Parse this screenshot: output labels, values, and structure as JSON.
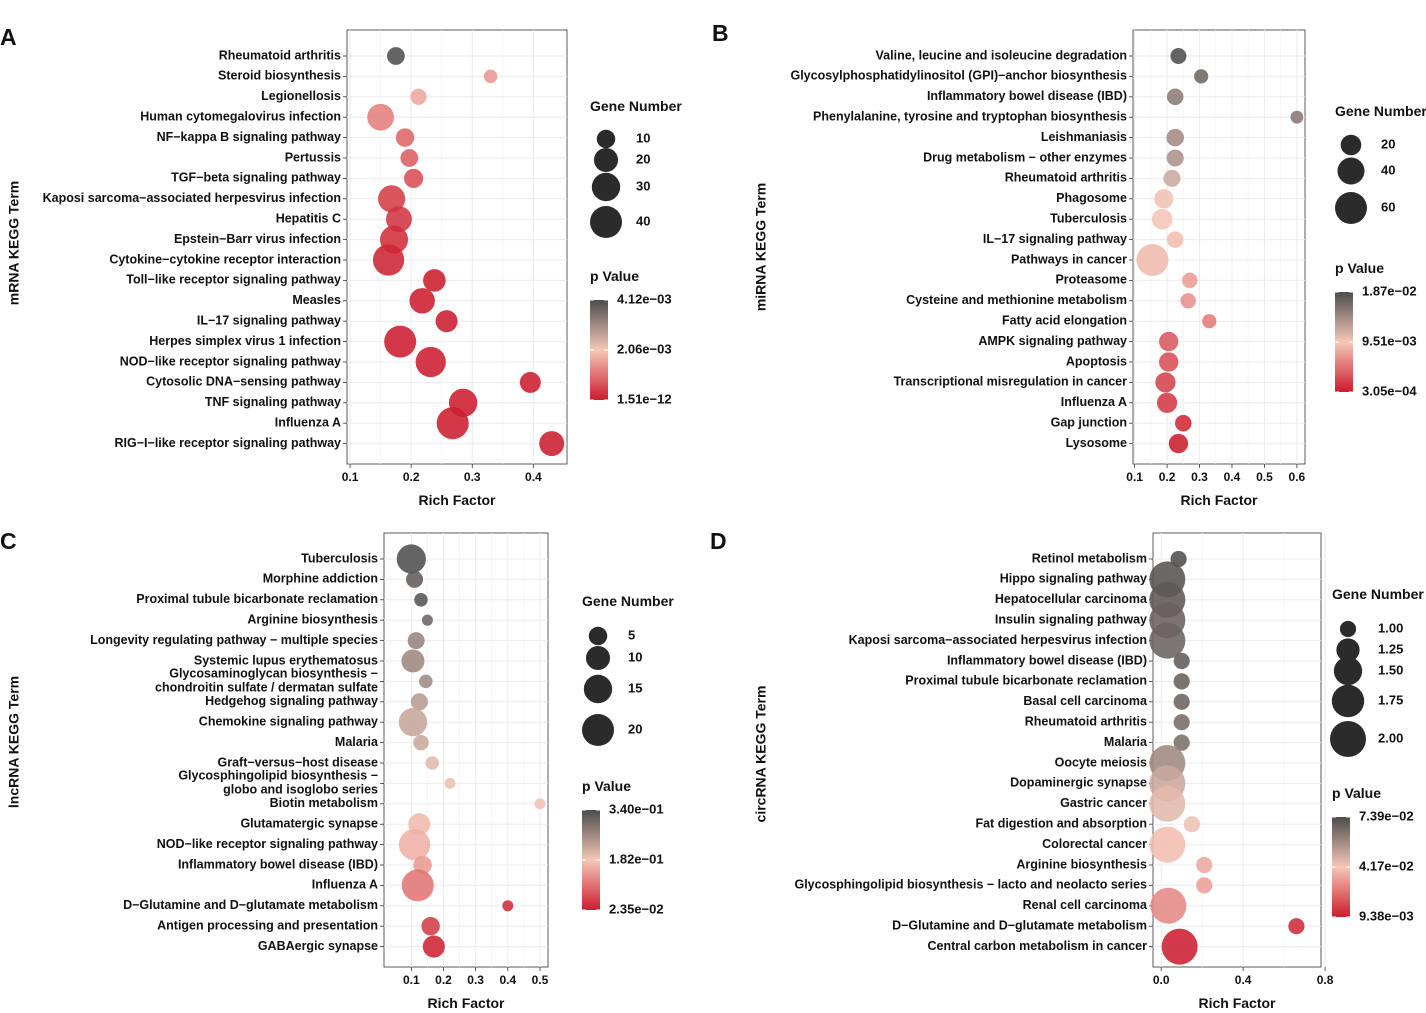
{
  "colors": {
    "low_p": "#cc1c2d",
    "mid_p": "#f4c7b7",
    "high_p": "#4d4d4d",
    "panel_bg": "#ffffff",
    "grid": "#ebebeb"
  },
  "chart_data": [
    {
      "type": "scatter",
      "panel": "A",
      "ylabel": "mRNA KEGG Term",
      "xlabel": "Rich Factor",
      "xlim": [
        0.095,
        0.455
      ],
      "xticks": [
        0.1,
        0.2,
        0.3,
        0.4
      ],
      "xtick_labels": [
        "0.1",
        "0.2",
        "0.3",
        "0.4"
      ],
      "size_legend": {
        "title": "Gene Number",
        "values": [
          10,
          20,
          30,
          40
        ],
        "labels": [
          "10",
          "20",
          "30",
          "40"
        ],
        "domain": [
          0,
          40
        ],
        "rmax": 16
      },
      "color_legend": {
        "title": "p Value",
        "labels": [
          "4.12e−03",
          "2.06e−03",
          "1.51e−12"
        ],
        "domain": [
          1.51e-12,
          0.00412
        ]
      },
      "points": [
        {
          "term": "Rheumatoid arthritis",
          "x": 0.175,
          "genes": 9,
          "p": 0.0041
        },
        {
          "term": "Steroid biosynthesis",
          "x": 0.33,
          "genes": 4,
          "p": 0.0015
        },
        {
          "term": "Legionellosis",
          "x": 0.212,
          "genes": 7,
          "p": 0.0017
        },
        {
          "term": "Human cytomegalovirus infection",
          "x": 0.15,
          "genes": 26,
          "p": 0.0012
        },
        {
          "term": "NF−kappa B signaling pathway",
          "x": 0.19,
          "genes": 10,
          "p": 0.0009
        },
        {
          "term": "Pertussis",
          "x": 0.197,
          "genes": 9,
          "p": 0.0008
        },
        {
          "term": "TGF−beta signaling pathway",
          "x": 0.204,
          "genes": 11,
          "p": 0.0006
        },
        {
          "term": "Kaposi sarcoma−associated herpesvirus infection",
          "x": 0.168,
          "genes": 27,
          "p": 0.0004
        },
        {
          "term": "Hepatitis C",
          "x": 0.18,
          "genes": 24,
          "p": 0.0003
        },
        {
          "term": "Epstein−Barr virus infection",
          "x": 0.172,
          "genes": 29,
          "p": 0.0002
        },
        {
          "term": "Cytokine−cytokine receptor interaction",
          "x": 0.163,
          "genes": 38,
          "p": 0.0001
        },
        {
          "term": "Toll−like receptor signaling pathway",
          "x": 0.238,
          "genes": 17,
          "p": 2e-05
        },
        {
          "term": "Measles",
          "x": 0.218,
          "genes": 23,
          "p": 1e-05
        },
        {
          "term": "IL−17 signaling pathway",
          "x": 0.258,
          "genes": 16,
          "p": 1e-05
        },
        {
          "term": "Herpes simplex virus 1 infection",
          "x": 0.182,
          "genes": 66,
          "p": 1e-06
        },
        {
          "term": "NOD−like receptor signaling pathway",
          "x": 0.232,
          "genes": 35,
          "p": 1e-06
        },
        {
          "term": "Cytosolic DNA−sensing pathway",
          "x": 0.395,
          "genes": 14,
          "p": 1e-07
        },
        {
          "term": "TNF signaling pathway",
          "x": 0.285,
          "genes": 30,
          "p": 1e-08
        },
        {
          "term": "Influenza A",
          "x": 0.268,
          "genes": 44,
          "p": 1e-09
        },
        {
          "term": "RIG−I−like receptor signaling pathway",
          "x": 0.43,
          "genes": 22,
          "p": 1.51e-12
        }
      ]
    },
    {
      "type": "scatter",
      "panel": "B",
      "ylabel": "miRNA KEGG Term",
      "xlabel": "Rich Factor",
      "xlim": [
        0.095,
        0.625
      ],
      "xticks": [
        0.1,
        0.2,
        0.3,
        0.4,
        0.5,
        0.6
      ],
      "xtick_labels": [
        "0.1",
        "0.2",
        "0.3",
        "0.4",
        "0.5",
        "0.6"
      ],
      "size_legend": {
        "title": "Gene Number",
        "values": [
          20,
          40,
          60
        ],
        "labels": [
          "20",
          "40",
          "60"
        ],
        "domain": [
          0,
          60
        ],
        "rmax": 16
      },
      "color_legend": {
        "title": "p Value",
        "labels": [
          "1.87e−02",
          "9.51e−03",
          "3.05e−04"
        ],
        "domain": [
          0.000305,
          0.0187
        ]
      },
      "points": [
        {
          "term": "Valine, leucine and isoleucine degradation",
          "x": 0.235,
          "genes": 10,
          "p": 0.0186
        },
        {
          "term": "Glycosylphosphatidylinositol (GPI)−anchor biosynthesis",
          "x": 0.305,
          "genes": 7,
          "p": 0.0168
        },
        {
          "term": "Inflammatory bowel disease (IBD)",
          "x": 0.225,
          "genes": 11,
          "p": 0.0152
        },
        {
          "term": "Phenylalanine, tyrosine and tryptophan biosynthesis",
          "x": 0.6,
          "genes": 5,
          "p": 0.0155
        },
        {
          "term": "Leishmaniasis",
          "x": 0.225,
          "genes": 13,
          "p": 0.014
        },
        {
          "term": "Drug metabolism − other enzymes",
          "x": 0.225,
          "genes": 12,
          "p": 0.0135
        },
        {
          "term": "Rheumatoid arthritis",
          "x": 0.215,
          "genes": 12,
          "p": 0.0118
        },
        {
          "term": "Phagosome",
          "x": 0.19,
          "genes": 17,
          "p": 0.0098
        },
        {
          "term": "Tuberculosis",
          "x": 0.185,
          "genes": 20,
          "p": 0.0094
        },
        {
          "term": "IL−17 signaling pathway",
          "x": 0.225,
          "genes": 11,
          "p": 0.009
        },
        {
          "term": "Pathways in cancer",
          "x": 0.155,
          "genes": 70,
          "p": 0.0088
        },
        {
          "term": "Proteasome",
          "x": 0.27,
          "genes": 9,
          "p": 0.0072
        },
        {
          "term": "Cysteine and methionine metabolism",
          "x": 0.265,
          "genes": 9,
          "p": 0.0066
        },
        {
          "term": "Fatty acid elongation",
          "x": 0.33,
          "genes": 7,
          "p": 0.0054
        },
        {
          "term": "AMPK signaling pathway",
          "x": 0.205,
          "genes": 17,
          "p": 0.0036
        },
        {
          "term": "Apoptosis",
          "x": 0.205,
          "genes": 17,
          "p": 0.003
        },
        {
          "term": "Transcriptional misregulation in cancer",
          "x": 0.195,
          "genes": 19,
          "p": 0.0024
        },
        {
          "term": "Influenza A",
          "x": 0.2,
          "genes": 19,
          "p": 0.0018
        },
        {
          "term": "Gap junction",
          "x": 0.25,
          "genes": 11,
          "p": 0.001
        },
        {
          "term": "Lysosome",
          "x": 0.235,
          "genes": 17,
          "p": 0.0004
        }
      ]
    },
    {
      "type": "scatter",
      "panel": "C",
      "ylabel": "lncRNA KEGG Term",
      "xlabel": "Rich Factor",
      "xlim": [
        0.015,
        0.525
      ],
      "xticks": [
        0.1,
        0.2,
        0.3,
        0.4,
        0.5
      ],
      "xtick_labels": [
        "0.1",
        "0.2",
        "0.3",
        "0.4",
        "0.5"
      ],
      "size_legend": {
        "title": "Gene Number",
        "values": [
          5,
          10,
          15,
          20
        ],
        "labels": [
          "5",
          "10",
          "15",
          "20"
        ],
        "domain": [
          0,
          20
        ],
        "rmax": 16
      },
      "color_legend": {
        "title": "p Value",
        "labels": [
          "3.40e−01",
          "1.82e−01",
          "2.35e−02"
        ],
        "domain": [
          0.0235,
          0.34
        ]
      },
      "points": [
        {
          "term": "Tuberculosis",
          "x": 0.1,
          "genes": 16,
          "p": 0.338
        },
        {
          "term": "Morphine addiction",
          "x": 0.11,
          "genes": 4,
          "p": 0.32
        },
        {
          "term": "Proximal tubule bicarbonate reclamation",
          "x": 0.13,
          "genes": 2,
          "p": 0.33
        },
        {
          "term": "Arginine biosynthesis",
          "x": 0.15,
          "genes": 1,
          "p": 0.31
        },
        {
          "term": "Longevity regulating pathway − multiple species",
          "x": 0.115,
          "genes": 4,
          "p": 0.27
        },
        {
          "term": "Systemic lupus erythematosus",
          "x": 0.105,
          "genes": 9,
          "p": 0.265
        },
        {
          "term": "Glycosaminoglycan biosynthesis −\nchondroitin sulfate / dermatan sulfate",
          "x": 0.145,
          "genes": 2,
          "p": 0.26
        },
        {
          "term": "Hedgehog signaling pathway",
          "x": 0.125,
          "genes": 4,
          "p": 0.24
        },
        {
          "term": "Chemokine signaling pathway",
          "x": 0.105,
          "genes": 15,
          "p": 0.225
        },
        {
          "term": "Malaria",
          "x": 0.13,
          "genes": 3,
          "p": 0.222
        },
        {
          "term": "Graft−versus−host disease",
          "x": 0.165,
          "genes": 2,
          "p": 0.2
        },
        {
          "term": "Glycosphingolipid biosynthesis −\nglobo and isoglobo series",
          "x": 0.22,
          "genes": 1,
          "p": 0.19
        },
        {
          "term": "Biotin metabolism",
          "x": 0.5,
          "genes": 1,
          "p": 0.185
        },
        {
          "term": "Glutamatergic synapse",
          "x": 0.125,
          "genes": 8,
          "p": 0.17
        },
        {
          "term": "NOD−like receptor signaling pathway",
          "x": 0.11,
          "genes": 19,
          "p": 0.16
        },
        {
          "term": "Inflammatory bowel disease (IBD)",
          "x": 0.135,
          "genes": 5,
          "p": 0.14
        },
        {
          "term": "Influenza A",
          "x": 0.12,
          "genes": 25,
          "p": 0.105
        },
        {
          "term": "D−Glutamine and D−glutamate metabolism",
          "x": 0.4,
          "genes": 1,
          "p": 0.04
        },
        {
          "term": "Antigen processing and presentation",
          "x": 0.16,
          "genes": 5,
          "p": 0.055
        },
        {
          "term": "GABAergic synapse",
          "x": 0.17,
          "genes": 8,
          "p": 0.03
        }
      ]
    },
    {
      "type": "scatter",
      "panel": "D",
      "ylabel": "circRNA KEGG Term",
      "xlabel": "Rich Factor",
      "xlim": [
        -0.04,
        0.78
      ],
      "xticks": [
        0.0,
        0.4,
        0.8
      ],
      "xtick_labels": [
        "0.0",
        "0.4",
        "0.8"
      ],
      "size_legend": {
        "title": "Gene Number",
        "values": [
          1.0,
          1.25,
          1.5,
          1.75,
          2.0
        ],
        "labels": [
          "1.00",
          "1.25",
          "1.50",
          "1.75",
          "2.00"
        ],
        "domain": [
          0.85,
          2.0
        ],
        "rmax": 18
      },
      "color_legend": {
        "title": "p Value",
        "labels": [
          "7.39e−02",
          "4.17e−02",
          "9.38e−03"
        ],
        "domain": [
          0.00938,
          0.0739
        ]
      },
      "points": [
        {
          "term": "Retinol metabolism",
          "x": 0.085,
          "genes": 1.0,
          "p": 0.0735
        },
        {
          "term": "Hippo signaling pathway",
          "x": 0.03,
          "genes": 2.0,
          "p": 0.072
        },
        {
          "term": "Hepatocellular carcinoma",
          "x": 0.03,
          "genes": 2.0,
          "p": 0.071
        },
        {
          "term": "Insulin signaling pathway",
          "x": 0.03,
          "genes": 2.0,
          "p": 0.0685
        },
        {
          "term": "Kaposi sarcoma−associated herpesvirus infection",
          "x": 0.03,
          "genes": 2.0,
          "p": 0.068
        },
        {
          "term": "Inflammatory bowel disease (IBD)",
          "x": 0.1,
          "genes": 1.0,
          "p": 0.07
        },
        {
          "term": "Proximal tubule bicarbonate reclamation",
          "x": 0.1,
          "genes": 1.0,
          "p": 0.069
        },
        {
          "term": "Basal cell carcinoma",
          "x": 0.1,
          "genes": 1.0,
          "p": 0.068
        },
        {
          "term": "Rheumatoid arthritis",
          "x": 0.1,
          "genes": 1.0,
          "p": 0.066
        },
        {
          "term": "Malaria",
          "x": 0.1,
          "genes": 1.0,
          "p": 0.065
        },
        {
          "term": "Oocyte meiosis",
          "x": 0.03,
          "genes": 2.0,
          "p": 0.058
        },
        {
          "term": "Dopaminergic synapse",
          "x": 0.03,
          "genes": 2.0,
          "p": 0.05
        },
        {
          "term": "Gastric cancer",
          "x": 0.03,
          "genes": 2.0,
          "p": 0.045
        },
        {
          "term": "Fat digestion and absorption",
          "x": 0.15,
          "genes": 1.0,
          "p": 0.043
        },
        {
          "term": "Colorectal cancer",
          "x": 0.03,
          "genes": 2.0,
          "p": 0.04
        },
        {
          "term": "Arginine biosynthesis",
          "x": 0.21,
          "genes": 1.0,
          "p": 0.036
        },
        {
          "term": "Glycosphingolipid biosynthesis − lacto and neolacto series",
          "x": 0.21,
          "genes": 1.0,
          "p": 0.034
        },
        {
          "term": "Renal cell carcinoma",
          "x": 0.035,
          "genes": 2.0,
          "p": 0.03
        },
        {
          "term": "D−Glutamine and D−glutamate metabolism",
          "x": 0.66,
          "genes": 1.0,
          "p": 0.012
        },
        {
          "term": "Central carbon metabolism in cancer",
          "x": 0.09,
          "genes": 2.0,
          "p": 0.01
        }
      ]
    }
  ]
}
